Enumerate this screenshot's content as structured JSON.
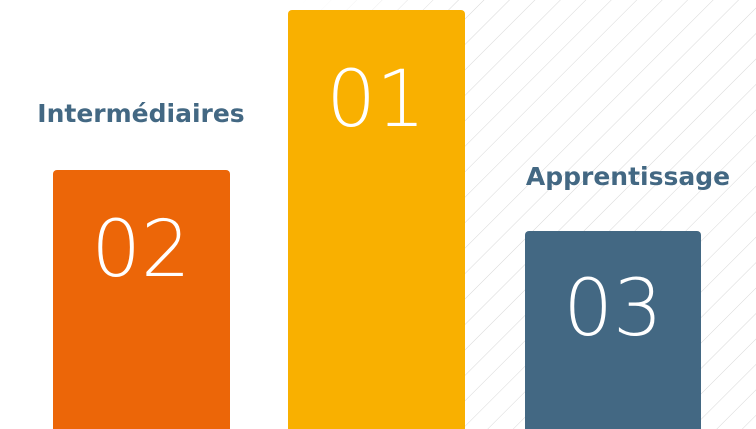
{
  "podium": [
    {
      "label": "Intermédiaires",
      "rank": "02"
    },
    {
      "rank": "01"
    },
    {
      "label": "Apprentissage",
      "rank": "03"
    }
  ]
}
